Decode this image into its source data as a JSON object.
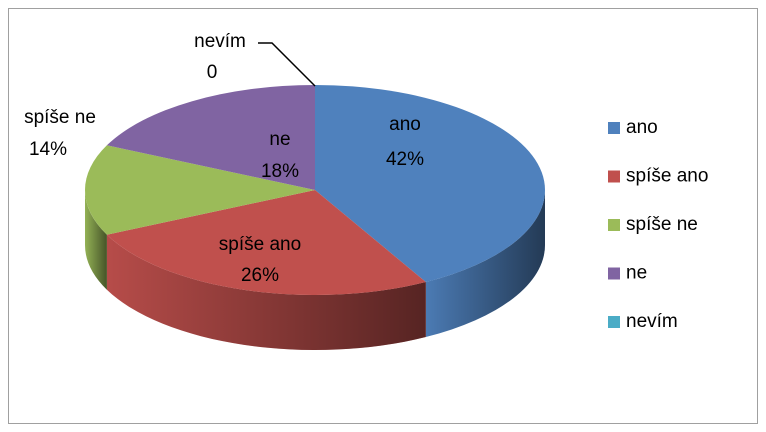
{
  "chart_data": {
    "type": "pie3d",
    "categories": [
      "ano",
      "spíše ano",
      "spíše ne",
      "ne",
      "nevím"
    ],
    "values": [
      42,
      26,
      14,
      18,
      0
    ],
    "value_labels": [
      "42%",
      "26%",
      "14%",
      "18%",
      "0"
    ],
    "colors": [
      "#4f81bd",
      "#c0504d",
      "#9bbb59",
      "#8064a2",
      "#4bacc6"
    ],
    "legend": "right"
  }
}
